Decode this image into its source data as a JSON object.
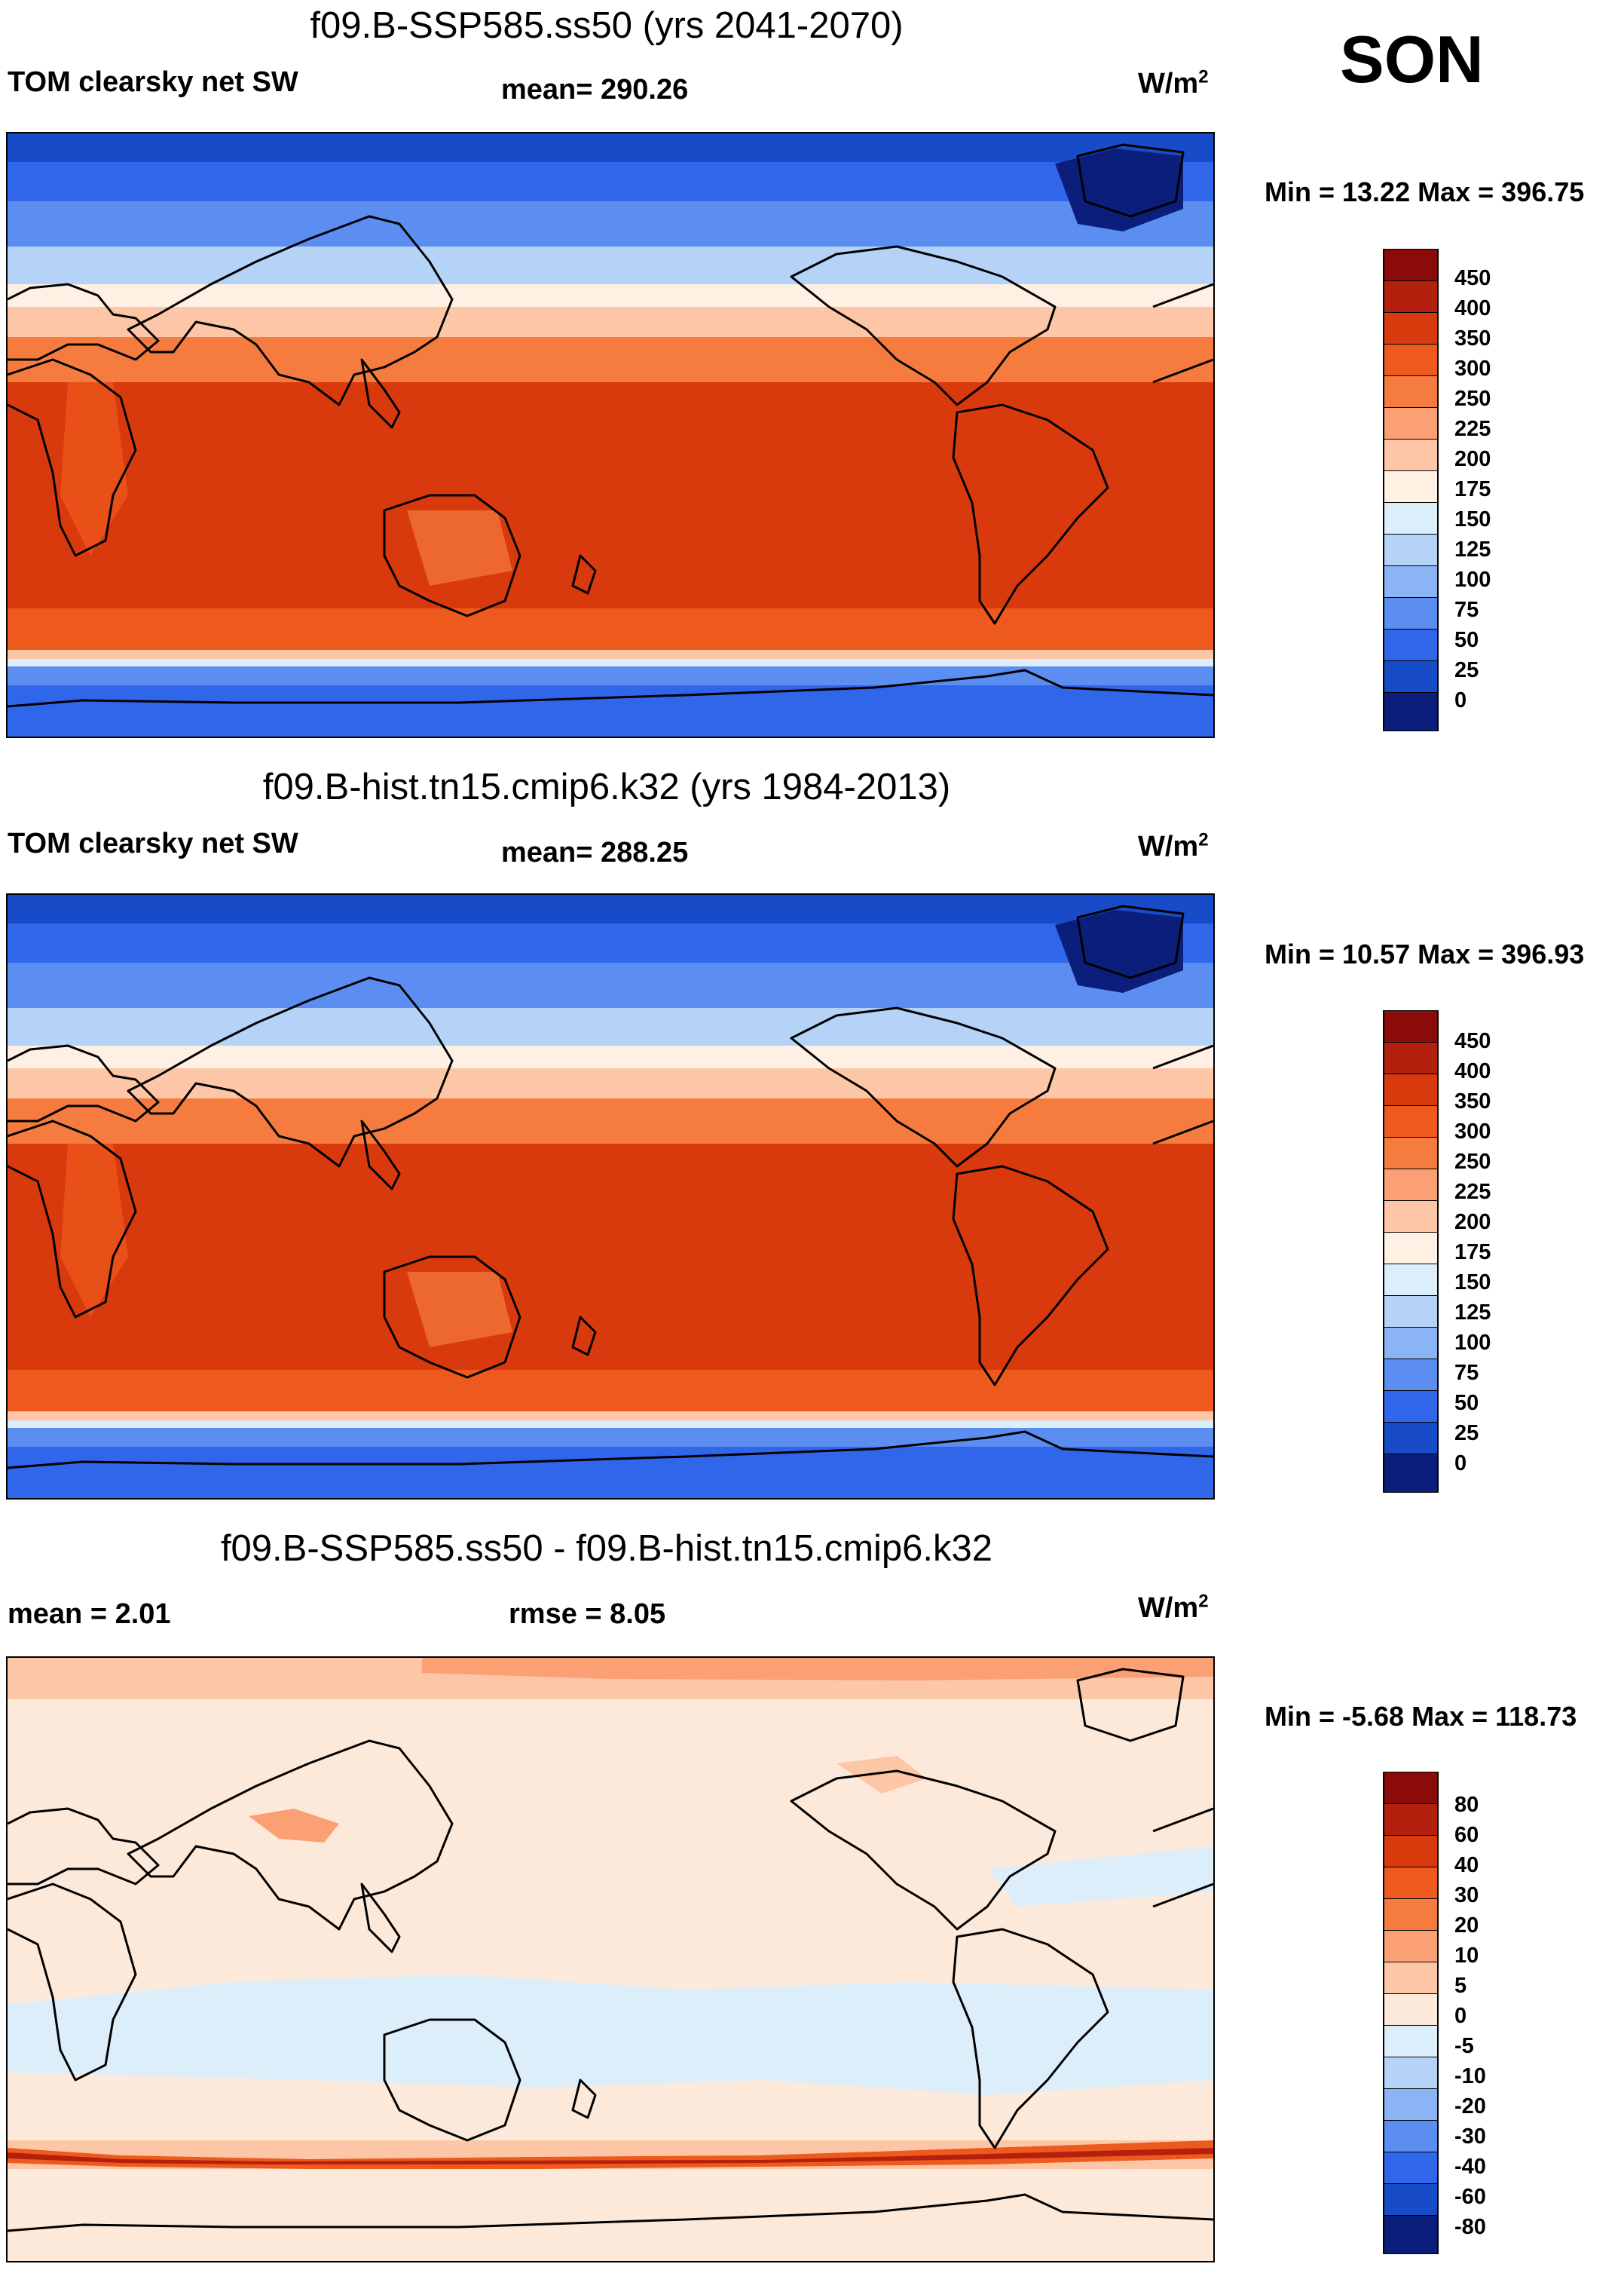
{
  "season": "SON",
  "panels": [
    {
      "id": "future",
      "title": "f09.B-SSP585.ss50 (yrs 2041-2070)",
      "variable": "TOM clearsky net SW",
      "stat_left": "",
      "stat_mid": "mean= 290.26",
      "units_base": "W/m",
      "units_exp": "2",
      "minmax": "Min =  13.22 Max = 396.75",
      "colorbar": {
        "labels": [
          "450",
          "400",
          "350",
          "300",
          "250",
          "225",
          "200",
          "175",
          "150",
          "125",
          "100",
          "75",
          "50",
          "25",
          "0"
        ],
        "colors": [
          "#8b0a0a",
          "#b3200e",
          "#d93a0d",
          "#ee5a1d",
          "#f57c3e",
          "#fb9f74",
          "#fdc6a6",
          "#fff0e4",
          "#ddeefb",
          "#b4d3f7",
          "#8ab4f4",
          "#5b8ef0",
          "#2f66ea",
          "#174bc8",
          "#0b1e7c"
        ]
      }
    },
    {
      "id": "historical",
      "title": "f09.B-hist.tn15.cmip6.k32 (yrs 1984-2013)",
      "variable": "TOM clearsky net SW",
      "stat_left": "",
      "stat_mid": "mean= 288.25",
      "units_base": "W/m",
      "units_exp": "2",
      "minmax": "Min =  10.57 Max = 396.93",
      "colorbar": {
        "labels": [
          "450",
          "400",
          "350",
          "300",
          "250",
          "225",
          "200",
          "175",
          "150",
          "125",
          "100",
          "75",
          "50",
          "25",
          "0"
        ],
        "colors": [
          "#8b0a0a",
          "#b3200e",
          "#d93a0d",
          "#ee5a1d",
          "#f57c3e",
          "#fb9f74",
          "#fdc6a6",
          "#fff0e4",
          "#ddeefb",
          "#b4d3f7",
          "#8ab4f4",
          "#5b8ef0",
          "#2f66ea",
          "#174bc8",
          "#0b1e7c"
        ]
      }
    },
    {
      "id": "difference",
      "title": "f09.B-SSP585.ss50 - f09.B-hist.tn15.cmip6.k32",
      "variable": "",
      "stat_left": "mean =    2.01",
      "stat_mid": "rmse =    8.05",
      "units_base": "W/m",
      "units_exp": "2",
      "minmax": "Min =  -5.68 Max = 118.73",
      "colorbar": {
        "labels": [
          "80",
          "60",
          "40",
          "30",
          "20",
          "10",
          "5",
          "0",
          "-5",
          "-10",
          "-20",
          "-30",
          "-40",
          "-60",
          "-80"
        ],
        "colors": [
          "#8b0a0a",
          "#b3200e",
          "#d93a0d",
          "#ee5a1d",
          "#f57c3e",
          "#fb9f74",
          "#fdc6a6",
          "#fde9da",
          "#ddeefb",
          "#b4d3f7",
          "#8ab4f4",
          "#5b8ef0",
          "#2f66ea",
          "#174bc8",
          "#0b1e7c"
        ]
      }
    }
  ]
}
